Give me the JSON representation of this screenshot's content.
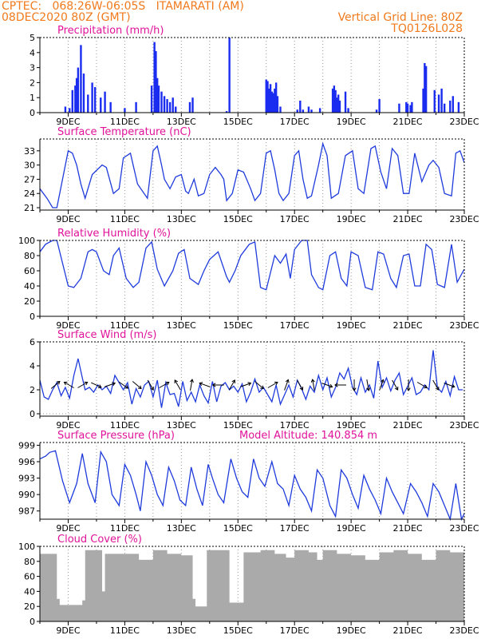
{
  "header": {
    "line1_left": "CPTEC:   068:26W-06:05S   ITAMARATI (AM)",
    "line2_left": "08DEC2020 80Z (GMT)",
    "line1_right": "Vertical Grid Line: 80Z",
    "line2_right": "TQ0126L028"
  },
  "colors": {
    "header": "#f07a1c",
    "title": "#e0139a",
    "line": "#1f3bdc",
    "bars": "#1a2cf0",
    "cloud": "#aaaaaa",
    "grid": "#9a9a9a"
  },
  "chart_data": [
    {
      "type": "bar",
      "title": "Precipitation  (mm/h)",
      "xticks": [
        "9DEC",
        "11DEC",
        "13DEC",
        "15DEC",
        "17DEC",
        "19DEC",
        "21DEC",
        "23DEC"
      ],
      "yticks": [
        "0",
        "1",
        "2",
        "3",
        "4",
        "5"
      ],
      "ylim": [
        0,
        5
      ],
      "x": [
        8.9,
        9.05,
        9.15,
        9.25,
        9.3,
        9.35,
        9.45,
        9.55,
        9.7,
        9.85,
        9.95,
        10.15,
        10.3,
        10.5,
        11.0,
        11.4,
        11.95,
        12.05,
        12.1,
        12.15,
        12.2,
        12.3,
        12.4,
        12.5,
        12.6,
        12.7,
        12.8,
        13.3,
        13.4,
        14.6,
        14.7,
        16.0,
        16.05,
        16.1,
        16.15,
        16.2,
        16.25,
        16.3,
        16.35,
        16.4,
        16.5,
        17.1,
        17.2,
        17.3,
        17.5,
        17.6,
        17.9,
        18.35,
        18.4,
        18.45,
        18.5,
        18.55,
        18.6,
        18.8,
        18.9,
        19.9,
        20.0,
        20.7,
        20.95,
        21.0,
        21.1,
        21.15,
        21.55,
        21.6,
        21.65,
        21.95,
        22.1,
        22.2,
        22.3,
        22.5,
        22.6,
        22.8
      ],
      "values": [
        0.4,
        0.3,
        1.5,
        1.8,
        2.3,
        3.0,
        4.5,
        2.6,
        1.2,
        2.0,
        1.7,
        1.0,
        1.4,
        0.7,
        0.3,
        0.7,
        1.8,
        4.7,
        4.1,
        2.3,
        1.8,
        1.4,
        1.1,
        0.9,
        0.7,
        1.0,
        0.4,
        0.7,
        1.0,
        0.1,
        5.0,
        2.2,
        2.1,
        1.6,
        1.9,
        1.4,
        1.3,
        1.6,
        2.0,
        1.1,
        0.4,
        0.2,
        0.8,
        0.2,
        0.4,
        0.2,
        0.3,
        1.6,
        1.8,
        1.5,
        1.0,
        1.2,
        0.8,
        1.4,
        0.3,
        0.2,
        0.9,
        0.6,
        0.7,
        0.6,
        0.5,
        0.7,
        1.6,
        3.3,
        3.1,
        1.5,
        1.2,
        1.6,
        0.6,
        0.8,
        1.1,
        0.7
      ]
    },
    {
      "type": "line",
      "title": "Surface Temperature  (nC)",
      "xticks": [
        "9DEC",
        "11DEC",
        "13DEC",
        "15DEC",
        "17DEC",
        "19DEC",
        "21DEC",
        "23DEC"
      ],
      "yticks": [
        "21",
        "24",
        "27",
        "30",
        "33"
      ],
      "ylim": [
        20.5,
        35.5
      ],
      "x": [
        8,
        8.25,
        8.45,
        8.6,
        8.8,
        9.0,
        9.15,
        9.3,
        9.45,
        9.6,
        9.85,
        10.2,
        10.35,
        10.6,
        10.8,
        10.95,
        11.2,
        11.45,
        11.8,
        12.0,
        12.15,
        12.3,
        12.4,
        12.6,
        12.8,
        13.0,
        13.15,
        13.25,
        13.45,
        13.6,
        13.8,
        14.0,
        14.2,
        14.4,
        14.5,
        14.6,
        14.8,
        15.0,
        15.2,
        15.45,
        15.6,
        15.8,
        16.0,
        16.15,
        16.3,
        16.45,
        16.6,
        16.8,
        17.0,
        17.15,
        17.3,
        17.45,
        17.6,
        17.85,
        18.0,
        18.15,
        18.3,
        18.55,
        18.8,
        19.05,
        19.25,
        19.45,
        19.7,
        19.85,
        20.05,
        20.25,
        20.45,
        20.65,
        20.85,
        21.05,
        21.25,
        21.5,
        21.75,
        21.9,
        22.1,
        22.3,
        22.55,
        22.7,
        22.85,
        23.0
      ],
      "values": [
        25.0,
        23.0,
        21.0,
        21.0,
        27.0,
        33.0,
        32.5,
        30.0,
        26.0,
        23.0,
        28.0,
        30.0,
        29.5,
        24.0,
        25.0,
        31.5,
        32.5,
        26.0,
        23.0,
        33.0,
        34.0,
        30.0,
        27.0,
        25.0,
        27.5,
        28.0,
        24.5,
        24.0,
        27.0,
        23.5,
        24.0,
        28.0,
        29.5,
        28.0,
        27.0,
        22.5,
        24.0,
        29.0,
        28.5,
        25.0,
        22.5,
        24.0,
        32.5,
        33.0,
        29.0,
        24.0,
        22.5,
        24.0,
        32.0,
        33.0,
        27.0,
        23.0,
        23.5,
        30.0,
        34.5,
        32.0,
        23.0,
        24.0,
        32.0,
        33.0,
        25.0,
        24.0,
        33.5,
        34.0,
        28.5,
        25.0,
        33.5,
        32.0,
        24.0,
        24.0,
        32.5,
        26.5,
        30.0,
        31.0,
        29.5,
        24.0,
        23.5,
        32.5,
        33.0,
        30.5
      ]
    },
    {
      "type": "line",
      "title": "Relative Humidity  (%)",
      "xticks": [
        "9DEC",
        "11DEC",
        "13DEC",
        "15DEC",
        "17DEC",
        "19DEC",
        "21DEC",
        "23DEC"
      ],
      "yticks": [
        "0",
        "20",
        "40",
        "60",
        "80",
        "100"
      ],
      "ylim": [
        0,
        100
      ],
      "x": [
        8,
        8.2,
        8.45,
        8.6,
        8.8,
        9.0,
        9.2,
        9.45,
        9.7,
        9.85,
        10.0,
        10.25,
        10.45,
        10.6,
        10.8,
        11.05,
        11.3,
        11.5,
        11.75,
        11.95,
        12.15,
        12.4,
        12.7,
        12.9,
        13.1,
        13.3,
        13.6,
        13.8,
        14.0,
        14.3,
        14.6,
        14.7,
        14.9,
        15.1,
        15.4,
        15.6,
        15.8,
        16.0,
        16.3,
        16.5,
        16.7,
        16.85,
        17.0,
        17.25,
        17.45,
        17.6,
        17.85,
        18.0,
        18.25,
        18.45,
        18.65,
        18.85,
        19.0,
        19.25,
        19.5,
        19.75,
        19.95,
        20.15,
        20.4,
        20.6,
        20.85,
        21.05,
        21.25,
        21.45,
        21.65,
        21.85,
        22.05,
        22.3,
        22.55,
        22.75,
        23.0
      ],
      "values": [
        85.0,
        95.0,
        100.0,
        100.0,
        70.0,
        40.0,
        38.0,
        50.0,
        85.0,
        88.0,
        85.0,
        60.0,
        55.0,
        80.0,
        90.0,
        50.0,
        38.0,
        45.0,
        90.0,
        98.0,
        62.0,
        40.0,
        60.0,
        83.0,
        88.0,
        50.0,
        42.0,
        60.0,
        75.0,
        85.0,
        52.0,
        45.0,
        60.0,
        80.0,
        95.0,
        98.0,
        38.0,
        35.0,
        80.0,
        70.0,
        82.0,
        50.0,
        88.0,
        100.0,
        100.0,
        55.0,
        38.0,
        35.0,
        80.0,
        85.0,
        50.0,
        40.0,
        85.0,
        80.0,
        38.0,
        35.0,
        85.0,
        82.0,
        50.0,
        38.0,
        80.0,
        82.0,
        40.0,
        40.0,
        95.0,
        88.0,
        42.0,
        38.0,
        95.0,
        45.0,
        62.0
      ]
    },
    {
      "type": "line",
      "title": "Surface Wind  (m/s)",
      "xticks": [
        "9DEC",
        "11DEC",
        "13DEC",
        "15DEC",
        "17DEC",
        "19DEC",
        "21DEC",
        "23DEC"
      ],
      "yticks": [
        "0",
        "2",
        "4",
        "6"
      ],
      "ylim": [
        -0.2,
        6
      ],
      "x": [
        8,
        8.15,
        8.3,
        8.45,
        8.6,
        8.75,
        8.9,
        9.05,
        9.2,
        9.35,
        9.5,
        9.6,
        9.75,
        9.9,
        10.05,
        10.2,
        10.35,
        10.5,
        10.65,
        10.8,
        10.95,
        11.1,
        11.25,
        11.4,
        11.55,
        11.7,
        11.85,
        12.0,
        12.15,
        12.3,
        12.45,
        12.6,
        12.75,
        12.9,
        13.05,
        13.2,
        13.35,
        13.5,
        13.65,
        13.8,
        13.95,
        14.1,
        14.25,
        14.4,
        14.55,
        14.7,
        14.85,
        15.0,
        15.15,
        15.3,
        15.45,
        15.6,
        15.75,
        15.9,
        16.05,
        16.2,
        16.35,
        16.5,
        16.65,
        16.8,
        16.95,
        17.1,
        17.25,
        17.4,
        17.55,
        17.7,
        17.85,
        18.0,
        18.15,
        18.3,
        18.45,
        18.6,
        18.75,
        18.9,
        19.05,
        19.2,
        19.35,
        19.5,
        19.65,
        19.8,
        19.95,
        20.1,
        20.25,
        20.4,
        20.55,
        20.7,
        20.85,
        21.0,
        21.15,
        21.3,
        21.45,
        21.6,
        21.75,
        21.9,
        22.05,
        22.2,
        22.35,
        22.5,
        22.65,
        22.8,
        22.95
      ],
      "values": [
        2.8,
        1.4,
        1.2,
        2.0,
        2.6,
        1.5,
        2.2,
        1.3,
        3.2,
        4.6,
        3.0,
        2.0,
        2.2,
        1.8,
        2.4,
        2.0,
        2.3,
        1.7,
        3.2,
        2.6,
        2.0,
        2.6,
        0.8,
        2.1,
        1.4,
        2.4,
        2.7,
        1.4,
        2.8,
        0.5,
        2.6,
        1.6,
        1.7,
        0.6,
        2.7,
        1.1,
        1.8,
        1.0,
        2.4,
        1.5,
        0.9,
        2.7,
        1.0,
        2.3,
        2.6,
        2.0,
        2.3,
        1.8,
        2.5,
        1.0,
        1.8,
        2.9,
        1.8,
        2.2,
        1.6,
        1.0,
        2.4,
        0.8,
        1.6,
        2.4,
        1.4,
        2.8,
        2.1,
        1.2,
        2.3,
        1.8,
        3.2,
        2.0,
        3.0,
        1.4,
        2.2,
        3.4,
        2.9,
        3.8,
        2.2,
        1.6,
        3.0,
        1.8,
        2.4,
        1.3,
        4.4,
        2.2,
        3.0,
        1.9,
        2.8,
        3.4,
        1.6,
        2.3,
        3.0,
        1.6,
        1.8,
        2.4,
        2.0,
        5.3,
        2.2,
        1.8,
        2.7,
        1.5,
        3.1,
        2.0,
        2.0
      ]
    },
    {
      "type": "line",
      "title": "Surface Pressure  (hPa)",
      "annotation": "Model Altitude: 140.854  m",
      "xticks": [
        "9DEC",
        "11DEC",
        "13DEC",
        "15DEC",
        "17DEC",
        "19DEC",
        "21DEC",
        "23DEC"
      ],
      "yticks": [
        "987",
        "990",
        "993",
        "996",
        "999"
      ],
      "ylim": [
        985.5,
        999.5
      ],
      "x": [
        8,
        8.2,
        8.35,
        8.55,
        8.8,
        9.05,
        9.3,
        9.5,
        9.7,
        9.95,
        10.15,
        10.35,
        10.55,
        10.8,
        11.0,
        11.2,
        11.4,
        11.55,
        11.75,
        11.95,
        12.15,
        12.35,
        12.55,
        12.75,
        12.95,
        13.15,
        13.35,
        13.55,
        13.75,
        13.95,
        14.1,
        14.3,
        14.5,
        14.75,
        14.95,
        15.15,
        15.35,
        15.55,
        15.75,
        15.95,
        16.2,
        16.4,
        16.6,
        16.8,
        17.0,
        17.2,
        17.4,
        17.6,
        17.8,
        18.0,
        18.25,
        18.45,
        18.65,
        18.85,
        19.05,
        19.25,
        19.45,
        19.65,
        19.85,
        20.05,
        20.25,
        20.45,
        20.65,
        20.85,
        21.1,
        21.3,
        21.5,
        21.7,
        21.9,
        22.1,
        22.3,
        22.5,
        22.7,
        22.9,
        23.0
      ],
      "values": [
        996.5,
        997.0,
        997.7,
        998.0,
        992.5,
        988.5,
        992.0,
        997.5,
        992.0,
        988.5,
        997.8,
        996.0,
        990.0,
        988.0,
        995.5,
        993.5,
        990.0,
        987.0,
        996.0,
        993.5,
        990.0,
        988.0,
        995.0,
        992.5,
        989.0,
        988.0,
        995.0,
        991.0,
        988.0,
        995.5,
        993.0,
        990.0,
        988.5,
        996.5,
        993.0,
        990.5,
        989.5,
        996.5,
        993.0,
        991.5,
        996.0,
        992.0,
        991.0,
        988.0,
        993.5,
        991.0,
        989.5,
        987.0,
        994.5,
        993.0,
        988.0,
        986.0,
        994.5,
        993.0,
        990.0,
        987.5,
        993.5,
        991.0,
        989.0,
        986.5,
        993.0,
        990.5,
        988.5,
        986.5,
        992.0,
        990.5,
        988.5,
        986.0,
        992.0,
        990.5,
        988.0,
        985.5,
        992.0,
        985.5,
        986.5
      ]
    },
    {
      "type": "bar",
      "title": "Cloud Cover  (%)",
      "xticks": [
        "9DEC",
        "11DEC",
        "13DEC",
        "15DEC",
        "17DEC",
        "19DEC",
        "21DEC",
        "23DEC"
      ],
      "yticks": [
        "0",
        "20",
        "40",
        "60",
        "80",
        "100"
      ],
      "ylim": [
        0,
        100
      ],
      "x": [
        8,
        8.6,
        8.7,
        9.5,
        9.6,
        10.2,
        10.3,
        11.5,
        12.0,
        12.5,
        13.0,
        13.4,
        13.5,
        13.9,
        14.2,
        14.7,
        15.2,
        15.8,
        16.3,
        16.7,
        17.0,
        17.5,
        17.8,
        18.0,
        18.5,
        19.0,
        19.5,
        20.0,
        20.5,
        21.0,
        21.5,
        22.0,
        22.5,
        23.0
      ],
      "values": [
        90,
        30,
        22,
        28,
        95,
        40,
        90,
        82,
        95,
        90,
        88,
        30,
        20,
        95,
        95,
        25,
        92,
        95,
        90,
        85,
        95,
        92,
        82,
        95,
        90,
        88,
        82,
        92,
        95,
        90,
        82,
        95,
        92,
        95
      ]
    }
  ]
}
